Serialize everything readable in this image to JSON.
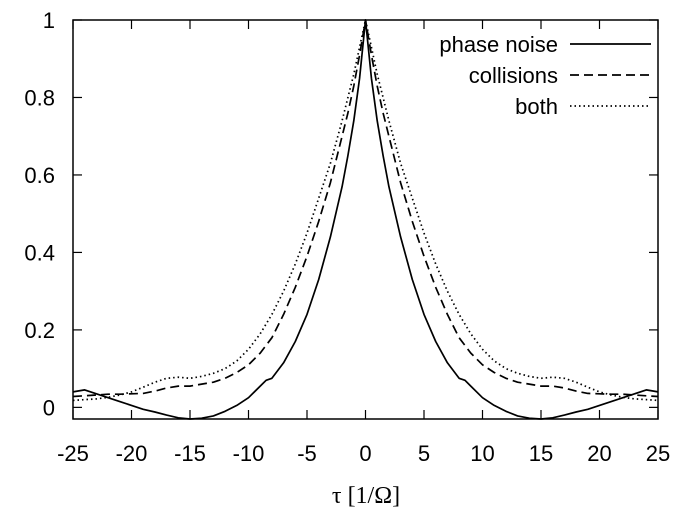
{
  "chart_data": {
    "type": "line",
    "title": "",
    "xlabel": "τ [1/Ω]",
    "ylabel": "",
    "xlim": [
      -25,
      25
    ],
    "ylim": [
      -0.03,
      1
    ],
    "xticks": [
      -25,
      -20,
      -15,
      -10,
      -5,
      0,
      5,
      10,
      15,
      20,
      25
    ],
    "yticks": [
      0,
      0.2,
      0.4,
      0.6,
      0.8,
      1
    ],
    "ytick_labels": [
      "0",
      "0.2",
      "0.4",
      "0.6",
      "0.8",
      "1"
    ],
    "legend_position": "top-right",
    "grid": false,
    "series": [
      {
        "name": "phase noise",
        "style": "solid",
        "x": [
          0,
          0.5,
          1,
          1.5,
          2,
          3,
          4,
          5,
          6,
          7,
          8,
          8.5,
          9,
          10,
          11,
          12,
          13,
          14,
          15,
          16,
          17,
          18,
          19,
          20,
          21,
          22,
          23,
          24,
          25
        ],
        "y": [
          1.0,
          0.85,
          0.74,
          0.65,
          0.57,
          0.44,
          0.33,
          0.24,
          0.17,
          0.115,
          0.075,
          0.07,
          0.055,
          0.025,
          0.005,
          -0.01,
          -0.022,
          -0.028,
          -0.03,
          -0.027,
          -0.02,
          -0.012,
          -0.005,
          0.005,
          0.015,
          0.025,
          0.035,
          0.045,
          0.04
        ]
      },
      {
        "name": "collisions",
        "style": "dashed",
        "x": [
          0,
          0.5,
          1,
          1.5,
          2,
          3,
          4,
          5,
          6,
          7,
          8,
          9,
          10,
          11,
          12,
          13,
          14,
          15,
          16,
          17,
          18,
          19,
          20,
          21,
          22,
          23,
          24,
          25
        ],
        "y": [
          1.0,
          0.91,
          0.83,
          0.76,
          0.7,
          0.58,
          0.48,
          0.39,
          0.31,
          0.24,
          0.18,
          0.14,
          0.11,
          0.09,
          0.075,
          0.065,
          0.06,
          0.055,
          0.055,
          0.05,
          0.042,
          0.036,
          0.035,
          0.034,
          0.034,
          0.032,
          0.03,
          0.028
        ]
      },
      {
        "name": "both",
        "style": "dotted",
        "x": [
          0,
          0.5,
          1,
          1.5,
          2,
          3,
          4,
          5,
          6,
          7,
          8,
          9,
          10,
          11,
          12,
          13,
          14,
          15,
          16,
          17,
          18,
          19,
          20,
          21,
          22,
          23,
          24,
          25
        ],
        "y": [
          1.0,
          0.93,
          0.86,
          0.8,
          0.74,
          0.63,
          0.54,
          0.45,
          0.37,
          0.3,
          0.24,
          0.19,
          0.15,
          0.12,
          0.1,
          0.088,
          0.08,
          0.075,
          0.078,
          0.075,
          0.065,
          0.052,
          0.04,
          0.032,
          0.026,
          0.022,
          0.02,
          0.018
        ]
      }
    ]
  }
}
